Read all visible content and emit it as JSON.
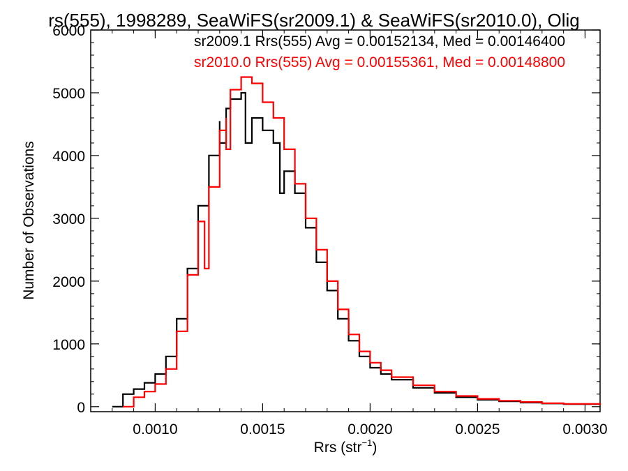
{
  "chart_data": {
    "type": "line",
    "step": true,
    "title": "rs(555), 1998289, SeaWiFS(sr2009.1) & SeaWiFS(sr2010.0), Olig",
    "xlabel": "Rrs (str",
    "xlabel_sup": "−1",
    "xlabel_end": ")",
    "ylabel": "Number of Observations",
    "xlim": [
      0.0007,
      0.00307
    ],
    "ylim": [
      -80,
      6000
    ],
    "xticks": [
      0.001,
      0.0015,
      0.002,
      0.0025,
      0.003
    ],
    "xtick_labels": [
      "0.0010",
      "0.0015",
      "0.0020",
      "0.0025",
      "0.0030"
    ],
    "yticks": [
      0,
      1000,
      2000,
      3000,
      4000,
      5000,
      6000
    ],
    "ytick_labels": [
      "0",
      "1000",
      "2000",
      "3000",
      "4000",
      "5000",
      "6000"
    ],
    "grid": false,
    "legend_position": "top-right",
    "series": [
      {
        "name": "sr2009.1 Rrs(555) Avg = 0.00152134, Med = 0.00146400",
        "color": "#000000",
        "x": [
          0.0008,
          0.00085,
          0.0009,
          0.00095,
          0.001,
          0.00105,
          0.0011,
          0.00115,
          0.0012,
          0.00125,
          0.0013,
          0.0013,
          0.00133,
          0.00133,
          0.00135,
          0.0014,
          0.00142,
          0.00142,
          0.00145,
          0.0015,
          0.00155,
          0.00158,
          0.00158,
          0.0016,
          0.00165,
          0.0017,
          0.00175,
          0.0018,
          0.00185,
          0.0019,
          0.00195,
          0.002,
          0.00205,
          0.0021,
          0.0022,
          0.0023,
          0.0024,
          0.0025,
          0.0026,
          0.0027,
          0.0028,
          0.0029,
          0.00307
        ],
        "values": [
          0,
          200,
          280,
          380,
          520,
          800,
          1400,
          2200,
          3200,
          4000,
          4550,
          4200,
          4700,
          4750,
          4900,
          5000,
          4900,
          4200,
          4600,
          4400,
          4200,
          3900,
          3400,
          3750,
          3400,
          2850,
          2300,
          1850,
          1400,
          1050,
          800,
          620,
          520,
          430,
          300,
          220,
          150,
          110,
          85,
          65,
          50,
          40,
          20
        ]
      },
      {
        "name": "sr2010.0 Rrs(555) Avg = 0.00155361, Med = 0.00148800",
        "color": "#ff0000",
        "x": [
          0.00085,
          0.0009,
          0.00095,
          0.001,
          0.00105,
          0.0011,
          0.00115,
          0.0012,
          0.00123,
          0.00125,
          0.0013,
          0.00133,
          0.00133,
          0.00135,
          0.0014,
          0.00145,
          0.0015,
          0.00155,
          0.0016,
          0.00165,
          0.0017,
          0.00175,
          0.0018,
          0.00185,
          0.0019,
          0.00195,
          0.002,
          0.00205,
          0.0021,
          0.0022,
          0.0023,
          0.0024,
          0.0025,
          0.0026,
          0.0027,
          0.0028,
          0.0029,
          0.00307
        ],
        "values": [
          0,
          150,
          240,
          360,
          600,
          1200,
          2100,
          2950,
          2200,
          3500,
          4400,
          4600,
          4100,
          5050,
          5250,
          5150,
          4850,
          4600,
          4100,
          3550,
          3000,
          2500,
          2000,
          1550,
          1150,
          880,
          700,
          580,
          470,
          340,
          240,
          170,
          125,
          95,
          75,
          55,
          45,
          25
        ]
      }
    ]
  }
}
